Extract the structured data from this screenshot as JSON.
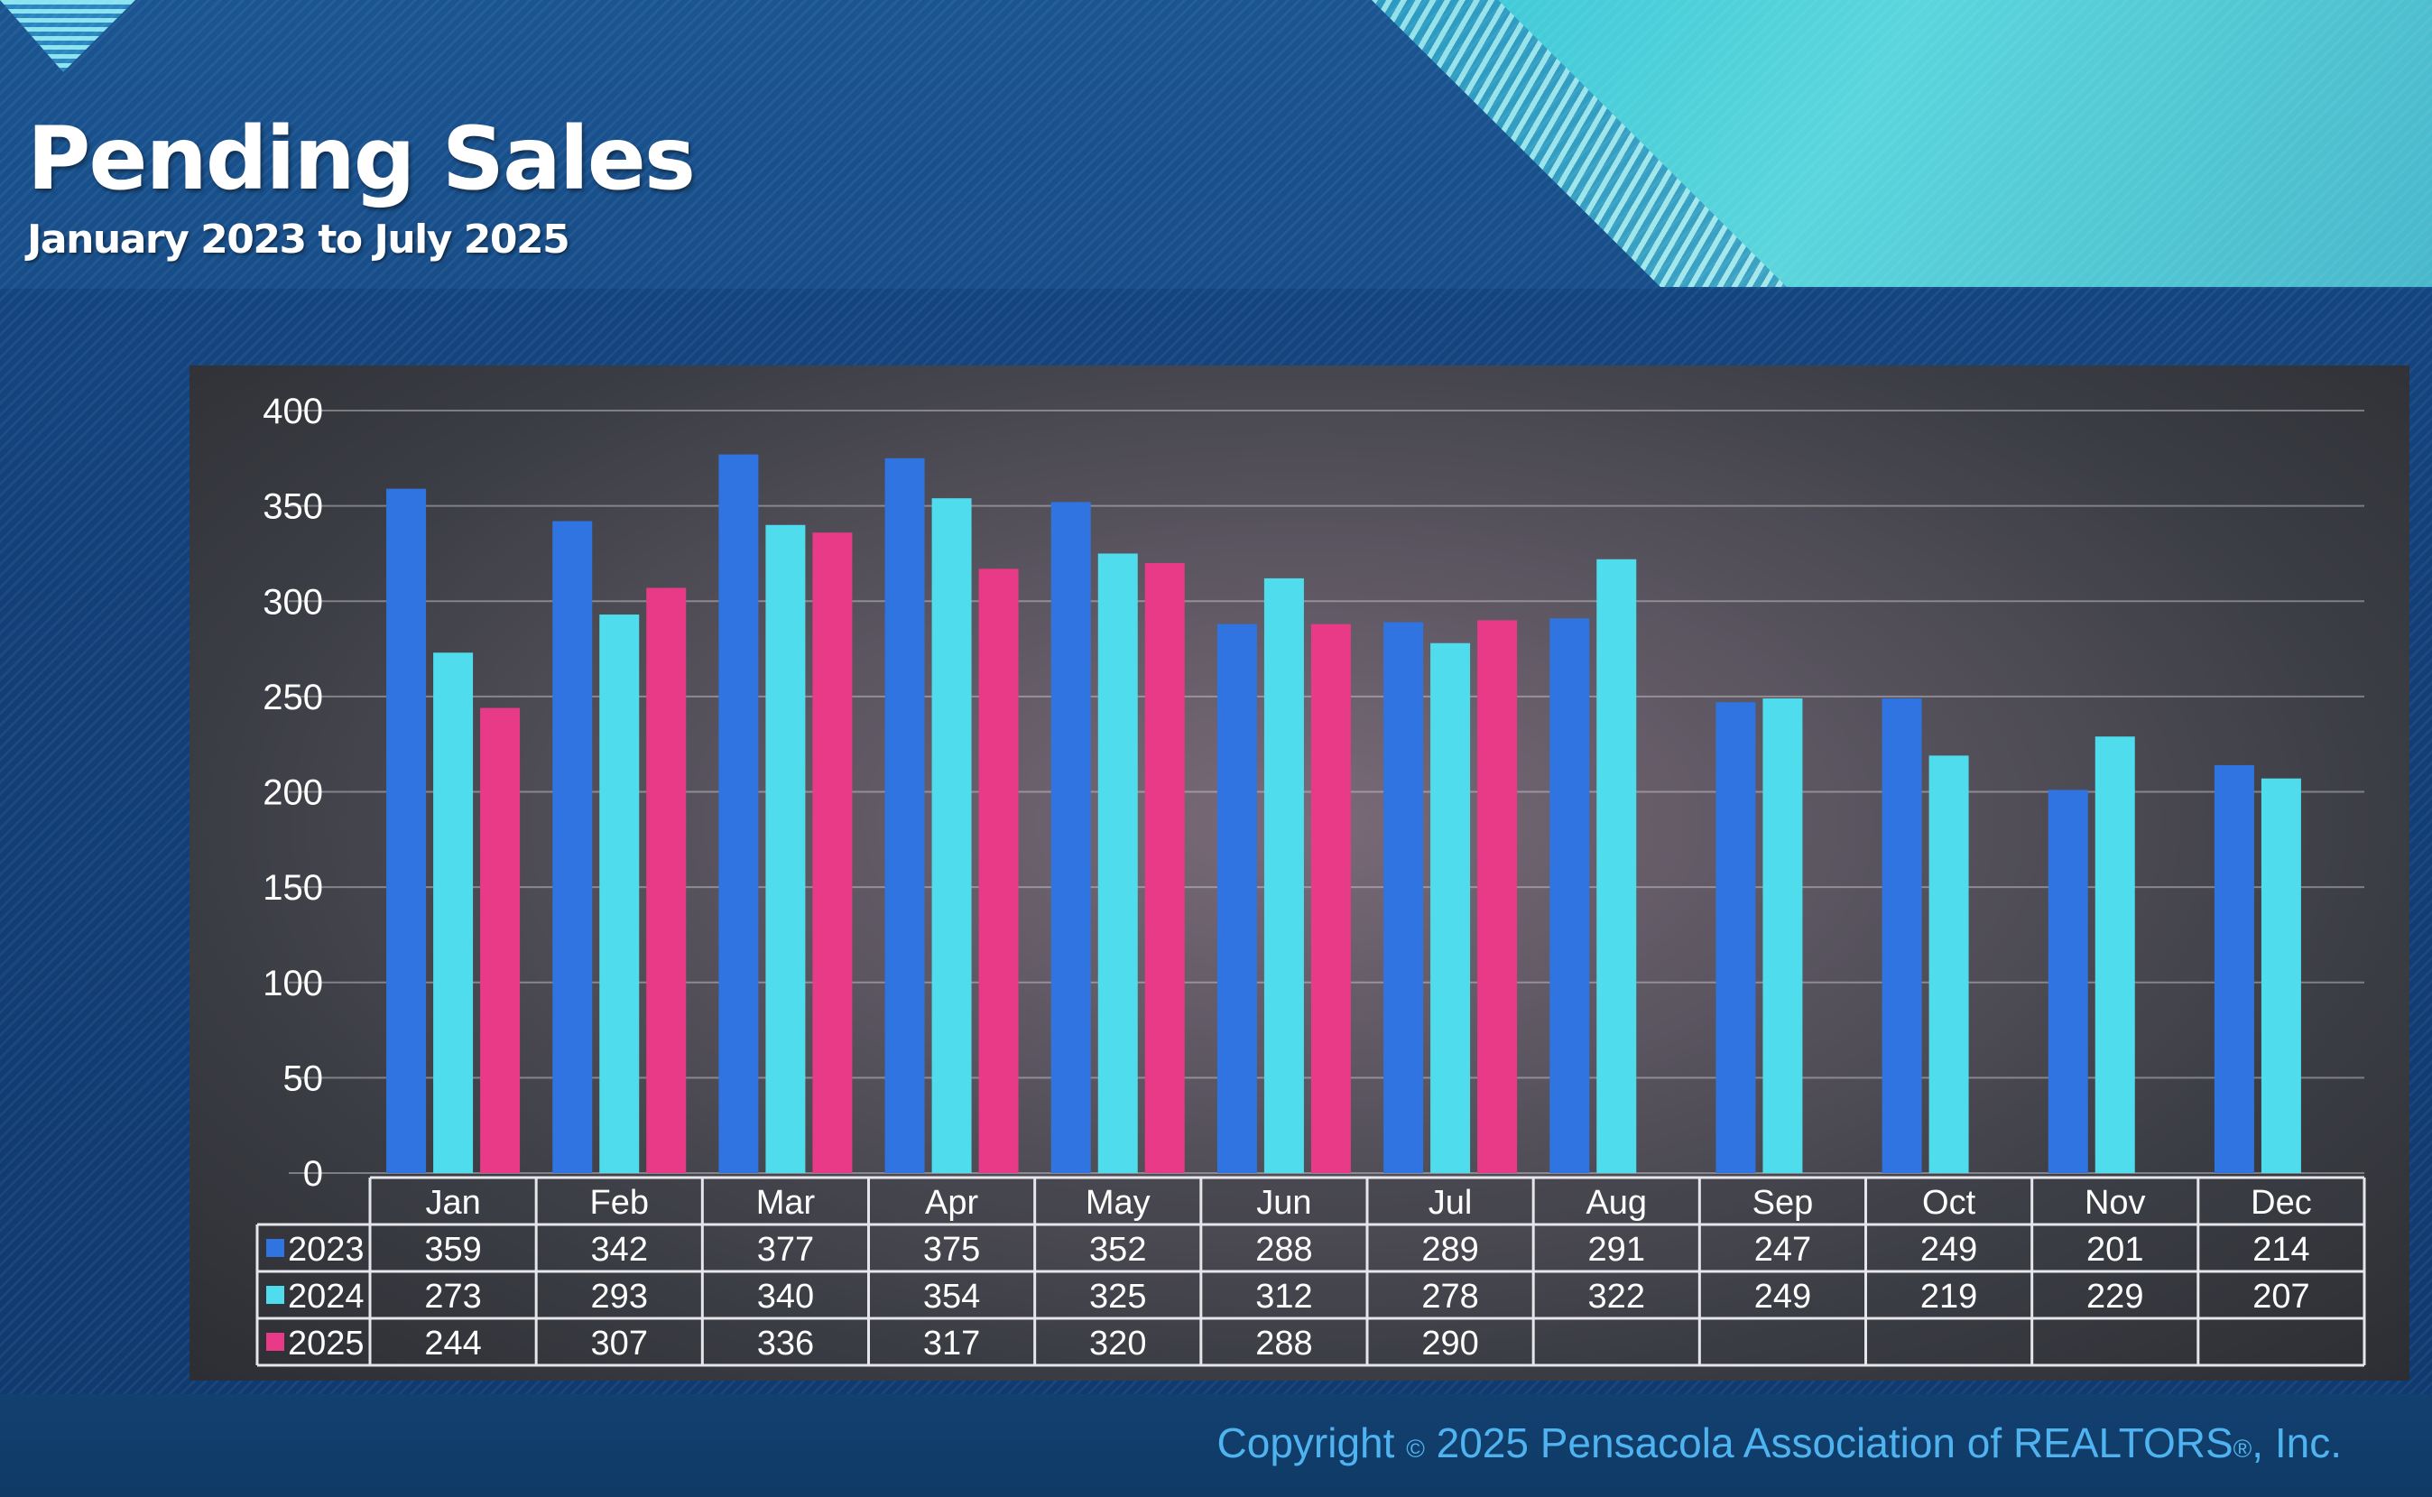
{
  "header": {
    "title": "Pending Sales",
    "subtitle": "January 2023 to July 2025"
  },
  "footer": {
    "copyright_prefix": "Copyright",
    "copyright_symbol": "©",
    "copyright_main": "2025 Pensacola Association of REALTORS",
    "registered_symbol": "®",
    "copyright_suffix": ", Inc."
  },
  "colors": {
    "2023": "#2f74e0",
    "2024": "#4fdcec",
    "2025": "#e83a86"
  },
  "chart_data": {
    "type": "bar",
    "title": "Pending Sales",
    "subtitle": "January 2023 to July 2025",
    "categories": [
      "Jan",
      "Feb",
      "Mar",
      "Apr",
      "May",
      "Jun",
      "Jul",
      "Aug",
      "Sep",
      "Oct",
      "Nov",
      "Dec"
    ],
    "series": [
      {
        "name": "2023",
        "values": [
          359,
          342,
          377,
          375,
          352,
          288,
          289,
          291,
          247,
          249,
          201,
          214
        ]
      },
      {
        "name": "2024",
        "values": [
          273,
          293,
          340,
          354,
          325,
          312,
          278,
          322,
          249,
          219,
          229,
          207
        ]
      },
      {
        "name": "2025",
        "values": [
          244,
          307,
          336,
          317,
          320,
          288,
          290,
          null,
          null,
          null,
          null,
          null
        ]
      }
    ],
    "ylim": [
      0,
      400
    ],
    "yticks": [
      0,
      50,
      100,
      150,
      200,
      250,
      300,
      350,
      400
    ],
    "grid": true,
    "legend": "data table below chart"
  }
}
